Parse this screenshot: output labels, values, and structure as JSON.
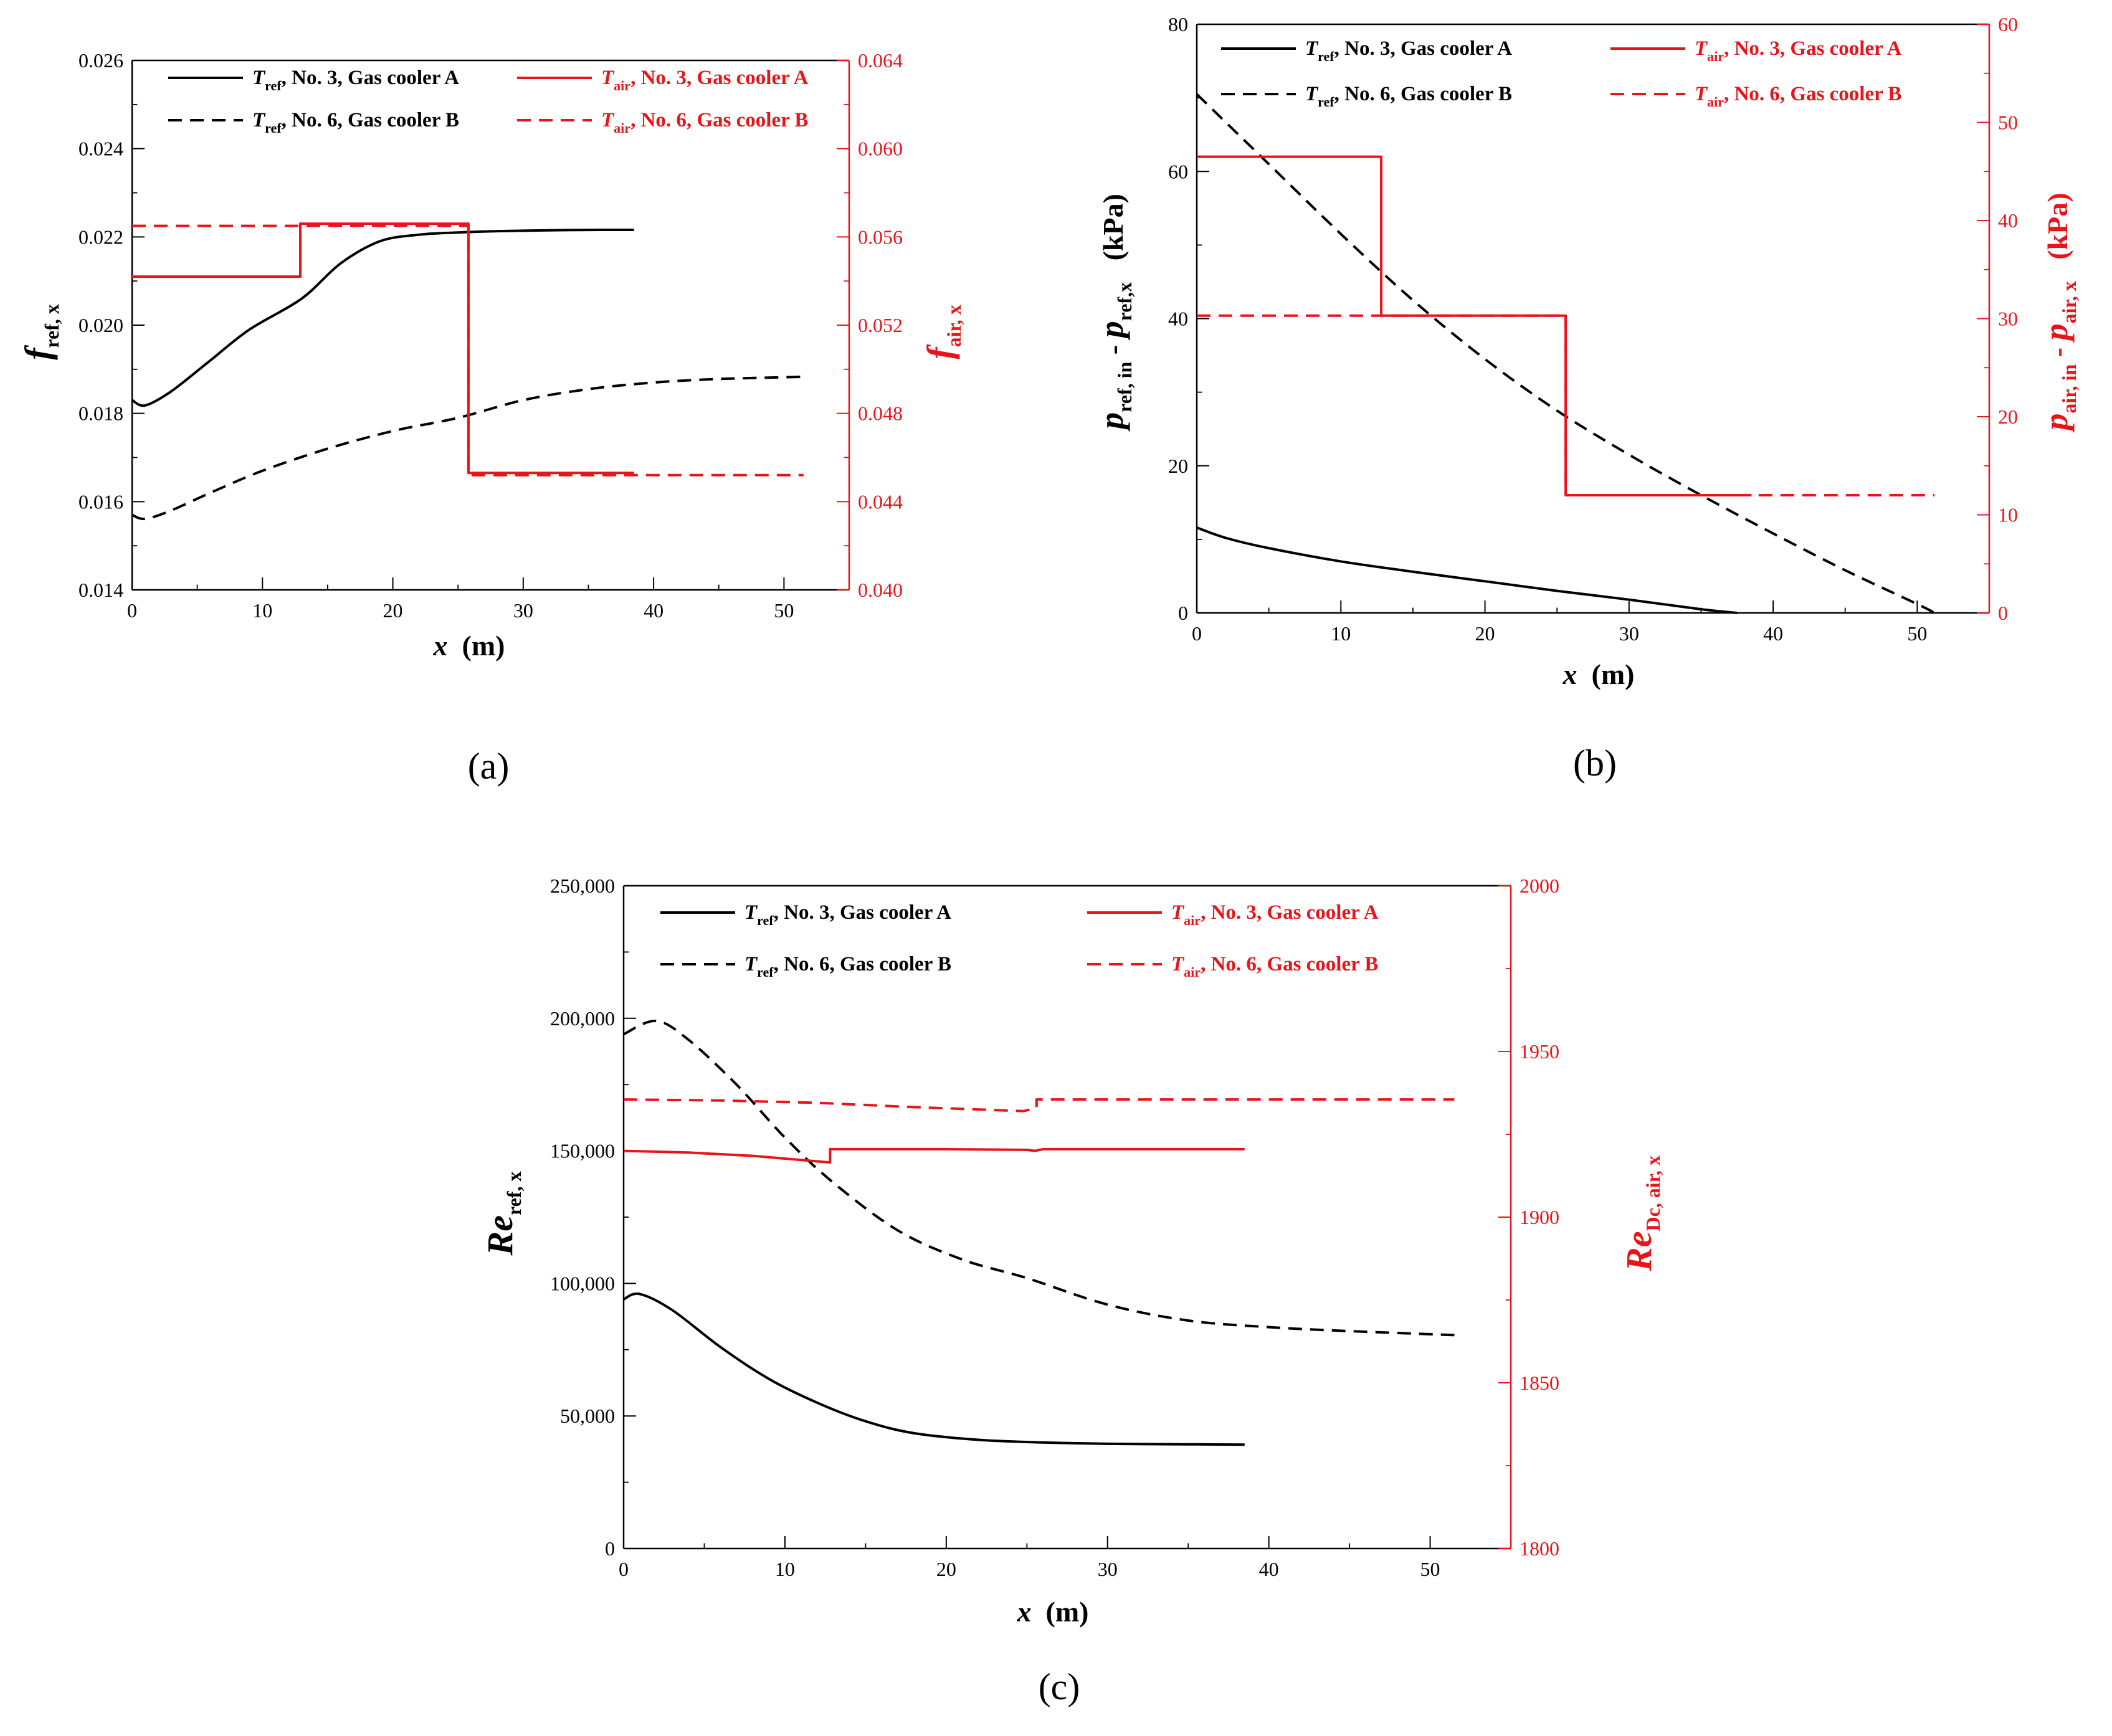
{
  "colors": {
    "black": "#000000",
    "red": "#e8141a"
  },
  "panels": [
    {
      "id": "a",
      "panel_label": "(a)",
      "legend": [
        {
          "sym": "T",
          "sub": "ref",
          "text": ", No. 3, Gas cooler A",
          "color": "black",
          "dash": false
        },
        {
          "sym": "T",
          "sub": "air",
          "text": ", No. 3, Gas cooler A",
          "color": "red",
          "dash": false
        },
        {
          "sym": "T",
          "sub": "ref",
          "text": ", No. 6, Gas cooler B",
          "color": "black",
          "dash": true
        },
        {
          "sym": "T",
          "sub": "air",
          "text": ", No. 6, Gas cooler B",
          "color": "red",
          "dash": true
        }
      ],
      "xlabel": {
        "main": "x",
        "unit": "(m)"
      },
      "ylabel_left": {
        "main": "f",
        "sub": "ref, x"
      },
      "ylabel_right": {
        "main": "f",
        "sub": "air, x"
      }
    },
    {
      "id": "b",
      "panel_label": "(b)",
      "legend": [
        {
          "sym": "T",
          "sub": "ref",
          "text": ", No. 3, Gas cooler A",
          "color": "black",
          "dash": false
        },
        {
          "sym": "T",
          "sub": "air",
          "text": ", No. 3, Gas cooler A",
          "color": "red",
          "dash": false
        },
        {
          "sym": "T",
          "sub": "ref",
          "text": ", No. 6, Gas cooler B",
          "color": "black",
          "dash": true
        },
        {
          "sym": "T",
          "sub": "air",
          "text": ", No. 6, Gas cooler B",
          "color": "red",
          "dash": true
        }
      ],
      "xlabel": {
        "main": "x",
        "unit": "(m)"
      },
      "ylabel_left": {
        "p1": "p",
        "s1": "ref, in",
        "mid": " - ",
        "p2": "p",
        "s2": "ref,x",
        "unit": "(kPa)"
      },
      "ylabel_right": {
        "p1": "p",
        "s1": "air, in",
        "mid": " - ",
        "p2": "p",
        "s2": "air, x",
        "unit": "(kPa)"
      }
    },
    {
      "id": "c",
      "panel_label": "(c)",
      "legend": [
        {
          "sym": "T",
          "sub": "ref",
          "text": ", No. 3, Gas cooler A",
          "color": "black",
          "dash": false
        },
        {
          "sym": "T",
          "sub": "air",
          "text": ", No. 3, Gas cooler A",
          "color": "red",
          "dash": false
        },
        {
          "sym": "T",
          "sub": "ref",
          "text": ", No. 6, Gas cooler B",
          "color": "black",
          "dash": true
        },
        {
          "sym": "T",
          "sub": "air",
          "text": ", No. 6, Gas cooler B",
          "color": "red",
          "dash": true
        }
      ],
      "xlabel": {
        "main": "x",
        "unit": "(m)"
      },
      "ylabel_left": {
        "main": "Re",
        "sub": "ref, x"
      },
      "ylabel_right": {
        "main": "Re",
        "sub": "Dc, air, x"
      }
    }
  ],
  "chart_data": [
    {
      "type": "line",
      "title": "(a)",
      "xlabel": "x (m)",
      "ylabel": "f_ref,x",
      "ylabel_right": "f_air,x",
      "xlim": [
        0,
        55
      ],
      "ylim": [
        0.014,
        0.026
      ],
      "ylim_right": [
        0.04,
        0.064
      ],
      "x_ticks": [
        0,
        10,
        20,
        30,
        40,
        50
      ],
      "x_tick_labels": [
        "0",
        "10",
        "20",
        "30",
        "40",
        "50"
      ],
      "y_ticks": [
        0.014,
        0.016,
        0.018,
        0.02,
        0.022,
        0.024,
        0.026
      ],
      "y_tick_labels": [
        "0.014",
        "0.016",
        "0.018",
        "0.020",
        "0.022",
        "0.024",
        "0.026"
      ],
      "y_ticks_right": [
        0.04,
        0.044,
        0.048,
        0.052,
        0.056,
        0.06,
        0.064
      ],
      "y_tick_labels_right": [
        "0.040",
        "0.044",
        "0.048",
        "0.052",
        "0.056",
        "0.060",
        "0.064"
      ],
      "series": [
        {
          "name": "T_ref, No. 3, Gas cooler A",
          "axis": "left",
          "color": "black",
          "dash": false,
          "smooth": true,
          "x": [
            0,
            1,
            3,
            6,
            9,
            13,
            16,
            19,
            22,
            25,
            28,
            32,
            36,
            38.5
          ],
          "y": [
            0.0183,
            0.01818,
            0.0185,
            0.0192,
            0.0199,
            0.0206,
            0.0214,
            0.0219,
            0.02205,
            0.0221,
            0.02213,
            0.02215,
            0.02216,
            0.02216
          ]
        },
        {
          "name": "T_ref, No. 6, Gas cooler B",
          "axis": "left",
          "color": "black",
          "dash": true,
          "smooth": true,
          "x": [
            0,
            1,
            3,
            6,
            10,
            15,
            20,
            25,
            30,
            35,
            40,
            45,
            51.5
          ],
          "y": [
            0.0157,
            0.01561,
            0.0158,
            0.0162,
            0.0167,
            0.0172,
            0.0176,
            0.0179,
            0.0183,
            0.01855,
            0.0187,
            0.01878,
            0.01883
          ]
        },
        {
          "name": "T_air, No. 3, Gas cooler A",
          "axis": "right",
          "color": "red",
          "dash": false,
          "smooth": false,
          "x": [
            0,
            12.9,
            12.9,
            25.8,
            25.8,
            38.5
          ],
          "y": [
            0.0542,
            0.0542,
            0.0566,
            0.0566,
            0.0453,
            0.0453
          ]
        },
        {
          "name": "T_air, No. 6, Gas cooler B",
          "axis": "right",
          "color": "red",
          "dash": true,
          "smooth": false,
          "x": [
            0,
            25.8,
            25.8,
            51.5
          ],
          "y": [
            0.0565,
            0.0565,
            0.0452,
            0.0452
          ]
        }
      ]
    },
    {
      "type": "line",
      "title": "(b)",
      "xlabel": "x (m)",
      "ylabel": "p_ref,in - p_ref,x (kPa)",
      "ylabel_right": "p_air,in - p_air,x (kPa)",
      "xlim": [
        0,
        55
      ],
      "ylim": [
        0,
        80
      ],
      "ylim_right": [
        0,
        60
      ],
      "x_ticks": [
        0,
        10,
        20,
        30,
        40,
        50
      ],
      "x_tick_labels": [
        "0",
        "10",
        "20",
        "30",
        "40",
        "50"
      ],
      "y_ticks": [
        0,
        20,
        40,
        60,
        80
      ],
      "y_tick_labels": [
        "0",
        "20",
        "40",
        "60",
        "80"
      ],
      "y_ticks_right": [
        0,
        10,
        20,
        30,
        40,
        50,
        60
      ],
      "y_tick_labels_right": [
        "0",
        "10",
        "20",
        "30",
        "40",
        "50",
        "60"
      ],
      "series": [
        {
          "name": "T_ref, No. 3, Gas cooler A",
          "axis": "left",
          "color": "black",
          "dash": false,
          "smooth": true,
          "x": [
            0,
            2,
            5,
            10,
            15,
            20,
            25,
            30,
            35,
            37.5
          ],
          "y": [
            11.6,
            10.2,
            8.8,
            7.0,
            5.6,
            4.3,
            3.0,
            1.8,
            0.5,
            0
          ]
        },
        {
          "name": "T_ref, No. 6, Gas cooler B",
          "axis": "left",
          "color": "black",
          "dash": true,
          "smooth": true,
          "x": [
            0,
            5,
            10,
            15,
            20,
            25,
            30,
            35,
            40,
            45,
            50,
            51.2
          ],
          "y": [
            70.5,
            61.0,
            51.5,
            42.5,
            34.5,
            27.5,
            21.5,
            16.0,
            10.8,
            5.8,
            1.2,
            0
          ]
        },
        {
          "name": "T_air, No. 3, Gas cooler A",
          "axis": "right",
          "color": "red",
          "dash": false,
          "smooth": false,
          "x": [
            0,
            12.8,
            12.8,
            25.6,
            25.6,
            38.5
          ],
          "y": [
            46.5,
            46.5,
            30.3,
            30.3,
            12.0,
            12.0
          ]
        },
        {
          "name": "T_air, No. 6, Gas cooler B",
          "axis": "right",
          "color": "red",
          "dash": true,
          "smooth": false,
          "x": [
            0,
            25.6,
            25.6,
            51.2
          ],
          "y": [
            30.3,
            30.3,
            12.0,
            12.0
          ]
        }
      ]
    },
    {
      "type": "line",
      "title": "(c)",
      "xlabel": "x (m)",
      "ylabel": "Re_ref,x",
      "ylabel_right": "Re_Dc,air,x",
      "xlim": [
        0,
        55
      ],
      "ylim": [
        0,
        250000
      ],
      "ylim_right": [
        1800,
        2000
      ],
      "x_ticks": [
        0,
        10,
        20,
        30,
        40,
        50
      ],
      "x_tick_labels": [
        "0",
        "10",
        "20",
        "30",
        "40",
        "50"
      ],
      "y_ticks": [
        0,
        50000,
        100000,
        150000,
        200000,
        250000
      ],
      "y_tick_labels": [
        "0",
        "50,000",
        "100,000",
        "150,000",
        "200,000",
        "250,000"
      ],
      "y_ticks_right": [
        1800,
        1850,
        1900,
        1950,
        2000
      ],
      "y_tick_labels_right": [
        "1800",
        "1850",
        "1900",
        "1950",
        "2000"
      ],
      "series": [
        {
          "name": "T_ref, No. 3, Gas cooler A",
          "axis": "left",
          "color": "black",
          "dash": false,
          "smooth": true,
          "x": [
            0,
            1,
            3,
            6,
            9,
            12,
            15,
            18,
            22,
            26,
            30,
            35,
            38.5
          ],
          "y": [
            94000,
            96000,
            90000,
            76000,
            64000,
            55000,
            48000,
            43500,
            41000,
            40000,
            39500,
            39300,
            39200
          ]
        },
        {
          "name": "T_ref, No. 6, Gas cooler B",
          "axis": "left",
          "color": "black",
          "dash": true,
          "smooth": true,
          "x": [
            0,
            2,
            4,
            7,
            10,
            13,
            17,
            21,
            25,
            30,
            35,
            40,
            45,
            51.5
          ],
          "y": [
            194000,
            199000,
            192000,
            175000,
            155000,
            138000,
            120000,
            109000,
            102000,
            92000,
            86000,
            83500,
            82000,
            80500
          ]
        },
        {
          "name": "T_air, No. 3, Gas cooler A",
          "axis": "right",
          "color": "red",
          "dash": false,
          "smooth": false,
          "x": [
            0,
            4,
            8,
            12.8,
            12.8,
            20,
            25,
            25.5,
            26,
            38.5
          ],
          "y": [
            1920,
            1919.5,
            1918.5,
            1916.5,
            1920.5,
            1920.5,
            1920.3,
            1920.0,
            1920.5,
            1920.5
          ]
        },
        {
          "name": "T_air, No. 6, Gas cooler B",
          "axis": "right",
          "color": "red",
          "dash": true,
          "smooth": false,
          "x": [
            0,
            6,
            12,
            18,
            24.8,
            25.6,
            25.6,
            35,
            51.5
          ],
          "y": [
            1935.5,
            1935.2,
            1934.5,
            1933.2,
            1932.0,
            1933.0,
            1935.5,
            1935.5,
            1935.5
          ]
        }
      ]
    }
  ]
}
